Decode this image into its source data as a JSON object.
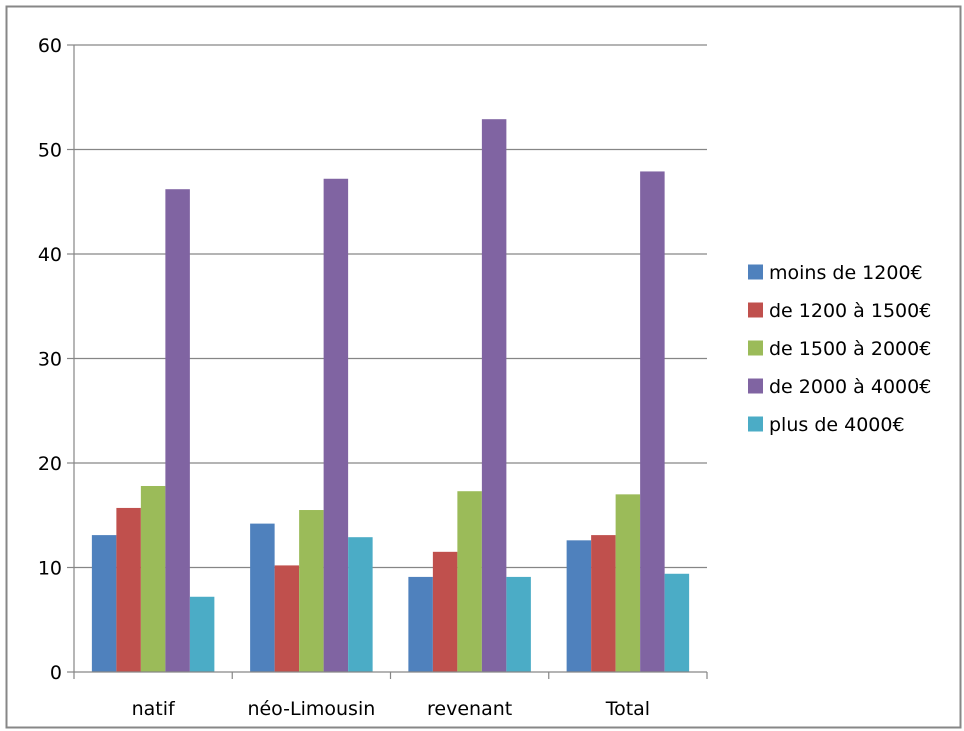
{
  "chart_data": {
    "type": "bar",
    "title": "",
    "xlabel": "",
    "ylabel": "",
    "categories": [
      "natif",
      "néo-Limousin",
      "revenant",
      "Total"
    ],
    "series": [
      {
        "name": "moins de 1200€",
        "color": "#4f81bd",
        "values": [
          13.1,
          14.2,
          9.1,
          12.6
        ]
      },
      {
        "name": "de 1200 à 1500€",
        "color": "#c0504d",
        "values": [
          15.7,
          10.2,
          11.5,
          13.1
        ]
      },
      {
        "name": "de 1500 à 2000€",
        "color": "#9bbb59",
        "values": [
          17.8,
          15.5,
          17.3,
          17.0
        ]
      },
      {
        "name": "de 2000 à 4000€",
        "color": "#8064a2",
        "values": [
          46.2,
          47.2,
          52.9,
          47.9
        ]
      },
      {
        "name": "plus de 4000€",
        "color": "#4bacc6",
        "values": [
          7.2,
          12.9,
          9.1,
          9.4
        ]
      }
    ],
    "ylim": [
      0,
      60
    ],
    "yticks": [
      0,
      10,
      20,
      30,
      40,
      50,
      60
    ],
    "grid": true,
    "legend_position": "right"
  }
}
